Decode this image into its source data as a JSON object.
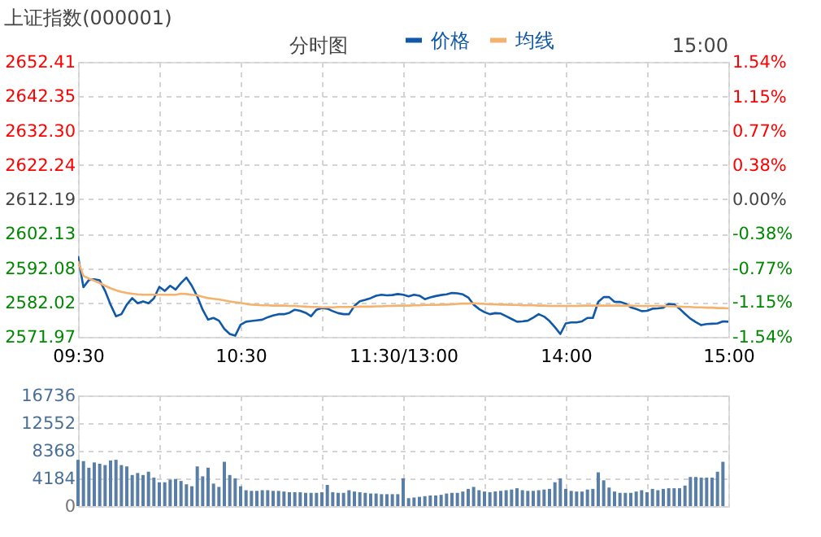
{
  "chart_data": [
    {
      "type": "line",
      "title": "上证指数(000001)",
      "annotations": [
        "分时图",
        "15:00"
      ],
      "legend": "top",
      "grid": true,
      "categories": [
        "09:30",
        null,
        null,
        null,
        null,
        null,
        null,
        null,
        null,
        null,
        null,
        null,
        null,
        null,
        null,
        null,
        null,
        null,
        null,
        null,
        null,
        null,
        null,
        null,
        null,
        null,
        null,
        null,
        null,
        null,
        "10:30",
        null,
        null,
        null,
        null,
        null,
        null,
        null,
        null,
        null,
        null,
        null,
        null,
        null,
        null,
        null,
        null,
        null,
        null,
        null,
        null,
        null,
        null,
        null,
        null,
        null,
        null,
        null,
        null,
        null,
        "11:30/13:00",
        null,
        null,
        null,
        null,
        null,
        null,
        null,
        null,
        null,
        null,
        null,
        null,
        null,
        null,
        null,
        null,
        null,
        null,
        null,
        null,
        null,
        null,
        null,
        null,
        null,
        null,
        null,
        null,
        null,
        "14:00",
        null,
        null,
        null,
        null,
        null,
        null,
        null,
        null,
        null,
        null,
        null,
        null,
        null,
        null,
        null,
        null,
        null,
        null,
        null,
        null,
        null,
        null,
        null,
        null,
        null,
        null,
        null,
        null,
        null,
        "15:00"
      ],
      "ylim": [
        2571.97,
        2652.41
      ],
      "yticks": [
        2571.97,
        2582.02,
        2592.08,
        2602.13,
        2612.19,
        2622.24,
        {
          "value": 2632.3,
          "label": "2632.30"
        },
        2642.35,
        2652.41
      ],
      "y2lim": [
        -1.54,
        1.54
      ],
      "y2ticks": [
        {
          "value": -1.54,
          "label": "-1.54%"
        },
        {
          "value": -1.15,
          "label": "-1.15%"
        },
        {
          "value": -0.77,
          "label": "-0.77%"
        },
        {
          "value": -0.38,
          "label": "-0.38%"
        },
        {
          "value": 0,
          "label": "0.00%"
        },
        {
          "value": 0.38,
          "label": "0.38%"
        },
        {
          "value": 0.77,
          "label": "0.77%"
        },
        {
          "value": 1.15,
          "label": "1.15%"
        },
        {
          "value": 1.54,
          "label": "1.54%"
        }
      ],
      "series": [
        {
          "name": "价格",
          "color": "#1058a8",
          "values": [
            2595.6,
            2586.5,
            2588.6,
            2588.8,
            2588.5,
            2585.4,
            2581.4,
            2578.0,
            2578.6,
            2581.4,
            2583.3,
            2581.8,
            2582.3,
            2581.8,
            2583.2,
            2586.6,
            2585.4,
            2586.9,
            2585.8,
            2587.7,
            2589.3,
            2586.9,
            2583.8,
            2579.9,
            2577.0,
            2577.5,
            2576.7,
            2574.3,
            2572.8,
            2572.3,
            2575.5,
            2576.4,
            2576.6,
            2576.8,
            2577.0,
            2577.7,
            2578.2,
            2578.6,
            2578.6,
            2579.0,
            2579.9,
            2579.6,
            2579.0,
            2578.0,
            2579.9,
            2580.4,
            2580.2,
            2579.5,
            2578.9,
            2578.6,
            2578.6,
            2581.0,
            2582.4,
            2582.8,
            2583.3,
            2584.0,
            2584.3,
            2584.1,
            2584.2,
            2584.5,
            2584.3,
            2583.8,
            2584.3,
            2584.0,
            2583.0,
            2583.5,
            2583.9,
            2584.2,
            2584.4,
            2584.8,
            2584.7,
            2584.4,
            2583.5,
            2581.4,
            2580.1,
            2579.2,
            2578.6,
            2578.9,
            2578.8,
            2578.0,
            2577.2,
            2576.4,
            2576.5,
            2576.7,
            2577.6,
            2578.6,
            2577.9,
            2576.6,
            2574.8,
            2572.8,
            2575.9,
            2576.2,
            2576.2,
            2576.5,
            2577.5,
            2577.5,
            2582.2,
            2583.6,
            2583.6,
            2582.2,
            2582.2,
            2581.7,
            2580.6,
            2580.1,
            2579.5,
            2579.6,
            2580.2,
            2580.3,
            2580.5,
            2581.6,
            2581.5,
            2580.2,
            2578.7,
            2577.3,
            2576.3,
            2575.4,
            2575.7,
            2575.8,
            2575.9,
            2576.5,
            2576.4
          ]
        },
        {
          "name": "均线",
          "color": "#f5b26e",
          "values": [
            2594.1,
            2589.8,
            2589.0,
            2588.4,
            2587.7,
            2586.9,
            2586.2,
            2585.6,
            2585.1,
            2584.8,
            2584.6,
            2584.4,
            2584.3,
            2584.3,
            2584.3,
            2584.3,
            2584.3,
            2584.3,
            2584.3,
            2584.6,
            2584.5,
            2584.3,
            2584.1,
            2583.7,
            2583.3,
            2583.1,
            2582.9,
            2582.6,
            2582.3,
            2582.1,
            2581.9,
            2581.6,
            2581.4,
            2581.3,
            2581.2,
            2581.2,
            2581.1,
            2581.1,
            2581.1,
            2581.0,
            2581.0,
            2580.9,
            2580.8,
            2580.7,
            2580.7,
            2580.6,
            2580.6,
            2580.6,
            2580.7,
            2580.7,
            2580.7,
            2580.7,
            2580.8,
            2580.8,
            2580.8,
            2580.9,
            2580.9,
            2581.0,
            2581.0,
            2581.1,
            2581.1,
            2581.1,
            2581.2,
            2581.2,
            2581.3,
            2581.3,
            2581.3,
            2581.4,
            2581.4,
            2581.5,
            2581.6,
            2581.7,
            2581.7,
            2581.8,
            2581.7,
            2581.6,
            2581.5,
            2581.5,
            2581.4,
            2581.4,
            2581.3,
            2581.3,
            2581.2,
            2581.2,
            2581.2,
            2581.1,
            2581.1,
            2581.0,
            2581.0,
            2581.0,
            2581.0,
            2581.0,
            2581.0,
            2581.1,
            2581.1,
            2581.1,
            2581.1,
            2581.1,
            2581.1,
            2581.1,
            2581.1,
            2581.1,
            2581.1,
            2581.0,
            2581.0,
            2581.0,
            2581.0,
            2581.0,
            2581.0,
            2580.9,
            2580.9,
            2580.8,
            2580.7,
            2580.7,
            2580.6,
            2580.6,
            2580.5,
            2580.5,
            2580.4,
            2580.4,
            2580.3
          ]
        }
      ]
    },
    {
      "type": "bar",
      "grid": true,
      "tick_labels": "y",
      "color": "#5a7fa6",
      "categories": [
        null,
        null,
        null,
        null,
        null,
        null,
        null,
        null,
        null,
        null,
        null,
        null,
        null,
        null,
        null,
        null,
        null,
        null,
        null,
        null,
        null,
        null,
        null,
        null,
        null,
        null,
        null,
        null,
        null,
        null,
        null,
        null,
        null,
        null,
        null,
        null,
        null,
        null,
        null,
        null,
        null,
        null,
        null,
        null,
        null,
        null,
        null,
        null,
        null,
        null,
        null,
        null,
        null,
        null,
        null,
        null,
        null,
        null,
        null,
        null,
        null,
        null,
        null,
        null,
        null,
        null,
        null,
        null,
        null,
        null,
        null,
        null,
        null,
        null,
        null,
        null,
        null,
        null,
        null,
        null,
        null,
        null,
        null,
        null,
        null,
        null,
        null,
        null,
        null,
        null,
        null,
        null,
        null,
        null,
        null,
        null,
        null,
        null,
        null,
        null,
        null,
        null,
        null,
        null,
        null,
        null,
        null,
        null,
        null,
        null,
        null,
        null,
        null,
        null,
        null,
        null,
        null,
        null,
        null,
        null,
        null
      ],
      "ylim": [
        0,
        16736
      ],
      "yticks": [
        0,
        4184,
        8368,
        12552,
        16736
      ],
      "values": [
        7000,
        6800,
        5800,
        6600,
        6400,
        6200,
        6900,
        7000,
        6200,
        6000,
        4700,
        5000,
        4700,
        5200,
        4300,
        3600,
        3600,
        4000,
        4100,
        3800,
        3300,
        3000,
        6000,
        4500,
        5800,
        3400,
        2900,
        6700,
        4700,
        4200,
        3000,
        2400,
        2300,
        2300,
        2400,
        2400,
        2300,
        2300,
        2200,
        2100,
        2100,
        2100,
        2000,
        2000,
        2000,
        2100,
        3200,
        2100,
        2000,
        2000,
        2400,
        2200,
        2100,
        2000,
        1900,
        1900,
        1800,
        1800,
        1800,
        1800,
        4200,
        1200,
        1300,
        1400,
        1500,
        1600,
        1600,
        1700,
        1900,
        2000,
        2000,
        2200,
        2600,
        2900,
        2400,
        2200,
        2100,
        2200,
        2300,
        2400,
        2500,
        2700,
        2400,
        2300,
        2300,
        2400,
        2500,
        2600,
        3600,
        4200,
        2600,
        2300,
        2200,
        2200,
        2500,
        2600,
        5100,
        3900,
        2800,
        2200,
        2000,
        2000,
        2000,
        2200,
        2400,
        2100,
        2600,
        2400,
        2600,
        2700,
        2700,
        2700,
        3100,
        4400,
        4400,
        4300,
        4300,
        4300,
        5200,
        6700,
        null
      ]
    }
  ]
}
